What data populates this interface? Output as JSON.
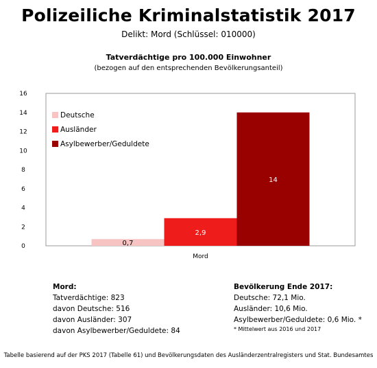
{
  "title": "Polizeiliche Kriminalstatistik 2017",
  "subtitle": "Delikt: Mord (Schlüssel: 010000)",
  "chart_data": {
    "type": "bar",
    "title": "Tatverdächtige pro 100.000 Einwohner",
    "subtitle": "(bezogen auf den entsprechenden Bevölkerungsanteil)",
    "categories": [
      "Mord"
    ],
    "series": [
      {
        "name": "Deutsche",
        "values": [
          0.7
        ],
        "label": "0,7",
        "color": "#f8c3c3"
      },
      {
        "name": "Ausländer",
        "values": [
          2.9
        ],
        "label": "2,9",
        "color": "#ef1c1c"
      },
      {
        "name": "Asylbewerber/Geduldete",
        "values": [
          14
        ],
        "label": "14",
        "color": "#990000"
      }
    ],
    "y_ticks": [
      "0",
      "2",
      "4",
      "6",
      "8",
      "10",
      "12",
      "14",
      "16"
    ],
    "ylim": [
      0,
      16
    ],
    "xlabel": "",
    "ylabel": "",
    "grid": false,
    "legend_position": "top-left inside plot"
  },
  "stats_left": {
    "heading": "Mord:",
    "lines": [
      "Tatverdächtige: 823",
      "davon Deutsche: 516",
      "davon Ausländer: 307",
      "davon Asylbewerber/Geduldete: 84"
    ]
  },
  "stats_right": {
    "heading": "Bevölkerung Ende 2017:",
    "lines": [
      "Deutsche: 72,1 Mio.",
      "Ausländer: 10,6 Mio.",
      "Asylbewerber/Geduldete: 0,6 Mio. *"
    ],
    "note": "* Mittelwert aus 2016 und 2017"
  },
  "footer": "Tabelle basierend auf der PKS 2017 (Tabelle 61) und Bevölkerungsdaten des Ausländerzentralregisters und Stat. Bundesamtes"
}
